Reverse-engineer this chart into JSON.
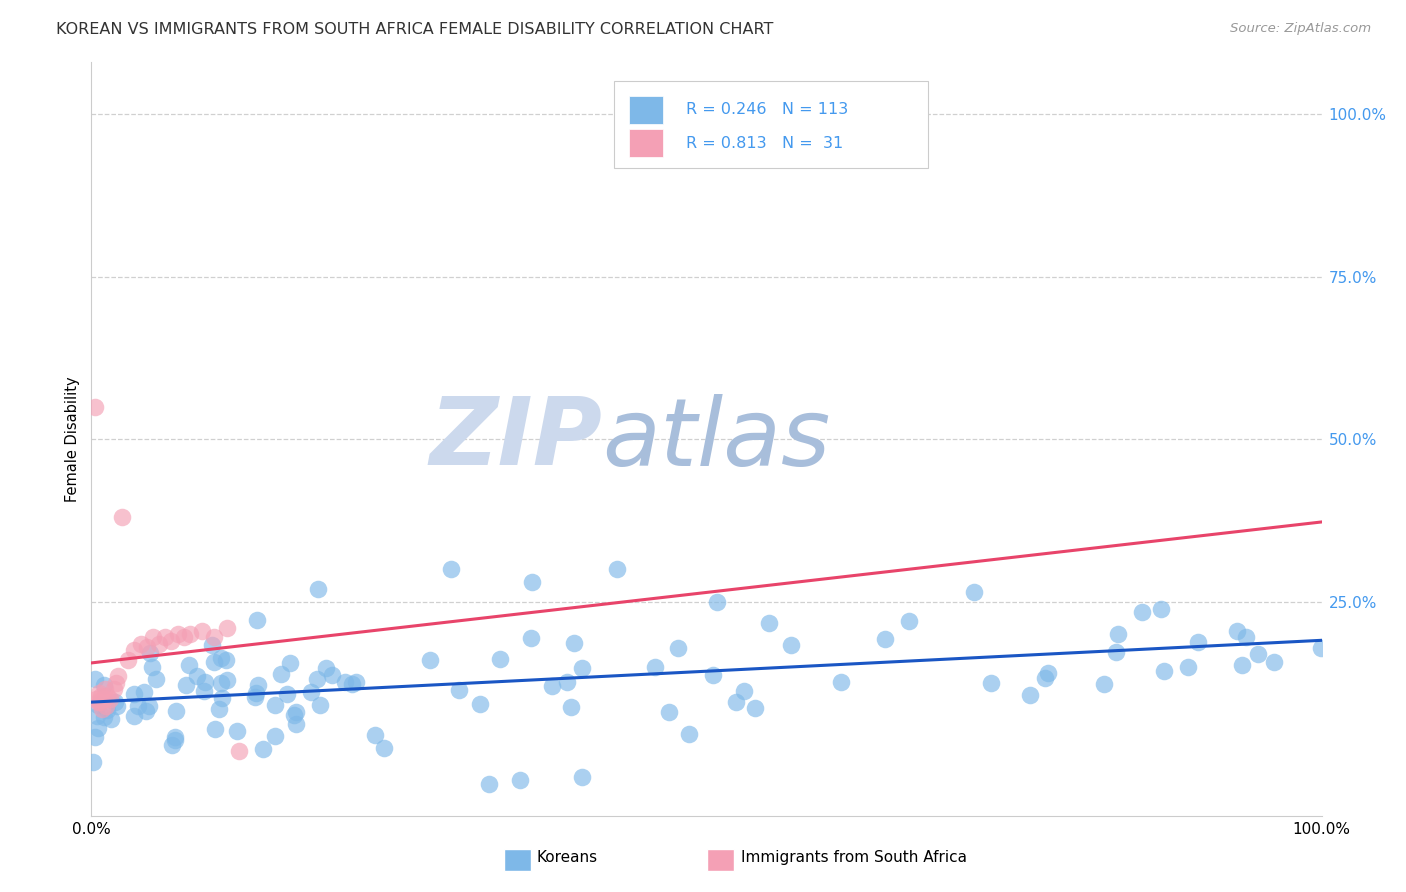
{
  "title": "KOREAN VS IMMIGRANTS FROM SOUTH AFRICA FEMALE DISABILITY CORRELATION CHART",
  "source": "Source: ZipAtlas.com",
  "ylabel": "Female Disability",
  "right_yticks": [
    "100.0%",
    "75.0%",
    "50.0%",
    "25.0%"
  ],
  "right_ytick_vals": [
    1.0,
    0.75,
    0.5,
    0.25
  ],
  "korean_color": "#7eb8e8",
  "sa_color": "#f4a0b5",
  "korean_line_color": "#1a56c4",
  "sa_line_color": "#e8446a",
  "right_axis_color": "#4499ee",
  "background_color": "#ffffff",
  "korean_R": 0.246,
  "korean_N": 113,
  "sa_R": 0.813,
  "sa_N": 31
}
